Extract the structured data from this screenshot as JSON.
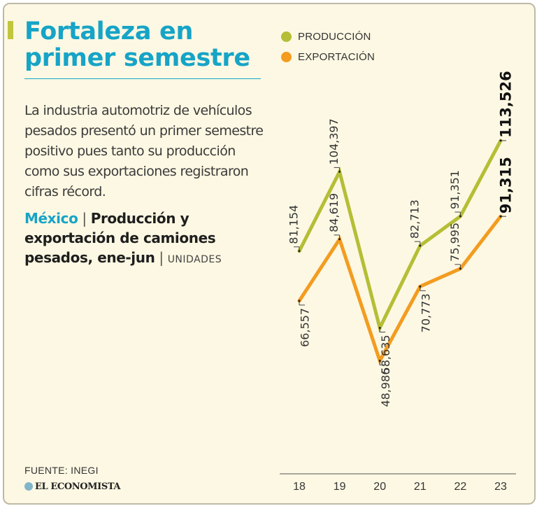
{
  "title": "Fortaleza en primer semestre",
  "description": "La industria automotriz de vehículos pesados presentó un primer semestre positivo pues tanto su producción como sus exportaciones registraron cifras récord.",
  "subtitle": {
    "country": "México",
    "separator": "|",
    "text": "Producción y exportación de camiones pesados, ene-jun",
    "units": "UNIDADES"
  },
  "source": "FUENTE: INEGI",
  "brand": "EL ECONOMISTA",
  "colors": {
    "production": "#b5be35",
    "exports": "#f39c20",
    "accent": "#16a4c7"
  },
  "chart_data": {
    "type": "line",
    "x": [
      "18",
      "19",
      "20",
      "21",
      "22",
      "23"
    ],
    "series": [
      {
        "name": "PRODUCCIÓN",
        "values": [
          81154,
          104397,
          58635,
          82713,
          91351,
          113526
        ],
        "labels": [
          "81,154",
          "104,397",
          "58,635",
          "82,713",
          "91,351",
          "113,526"
        ]
      },
      {
        "name": "EXPORTACIÓN",
        "values": [
          66557,
          84619,
          48986,
          70773,
          75995,
          91315
        ],
        "labels": [
          "66,557",
          "84,619",
          "48,986",
          "70,773",
          "75,995",
          "91,315"
        ]
      }
    ],
    "legend_position": "top"
  }
}
